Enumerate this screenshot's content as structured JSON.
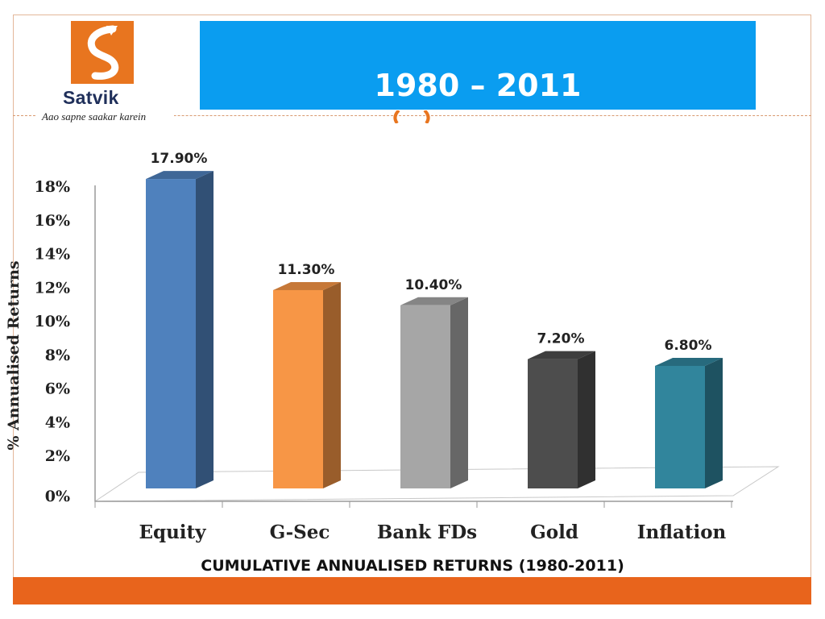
{
  "logo": {
    "name": "Satvik",
    "tagline": "Aao sapne saakar karein",
    "brand_color": "#e8751f"
  },
  "header": {
    "title": "1980 – 2011",
    "banner_color": "#0a9df0"
  },
  "caption": "CUMULATIVE ANNUALISED RETURNS (1980-2011)",
  "chart_data": {
    "type": "bar",
    "title": "",
    "xlabel": "",
    "ylabel": "% Annualised Returns",
    "categories": [
      "Equity",
      "G-Sec",
      "Bank FDs",
      "Gold",
      "Inflation"
    ],
    "values": [
      17.9,
      11.3,
      10.4,
      7.2,
      6.8
    ],
    "data_labels": [
      "17.90%",
      "11.30%",
      "10.40%",
      "7.20%",
      "6.80%"
    ],
    "colors": [
      "#4f81bd",
      "#f79646",
      "#a6a6a6",
      "#4d4d4d",
      "#31859c"
    ],
    "ylim": [
      0,
      18
    ],
    "yticks": [
      0,
      2,
      4,
      6,
      8,
      10,
      12,
      14,
      16,
      18
    ],
    "ytick_labels": [
      "0%",
      "2%",
      "4%",
      "6%",
      "8%",
      "10%",
      "12%",
      "14%",
      "16%",
      "18%"
    ],
    "grid": false,
    "style": "3d"
  }
}
